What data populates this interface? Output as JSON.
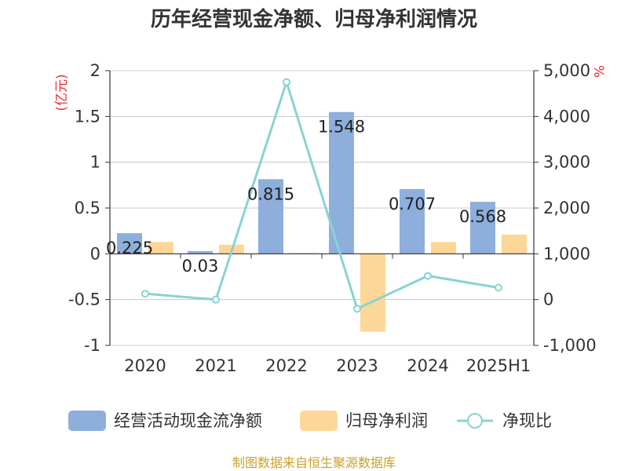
{
  "chart_data": {
    "type": "bar+line",
    "title": "历年经营现金净额、归母净利润情况",
    "categories": [
      "2020",
      "2021",
      "2022",
      "2023",
      "2024",
      "2025H1"
    ],
    "y_left": {
      "unit": "(亿元)",
      "min": -1,
      "max": 2,
      "ticks": [
        2,
        1.5,
        1,
        0.5,
        0,
        -0.5,
        -1
      ],
      "tick_labels": [
        "2",
        "1.5",
        "1",
        "0.5",
        "0",
        "-0.5",
        "-1"
      ]
    },
    "y_right": {
      "unit": "%",
      "min": -1000,
      "max": 5000,
      "ticks": [
        5000,
        4000,
        3000,
        2000,
        1000,
        0,
        -1000
      ],
      "tick_labels": [
        "5,000",
        "4,000",
        "3,000",
        "2,000",
        "1,000",
        "0",
        "-1,000"
      ]
    },
    "series": [
      {
        "name": "经营活动现金流净额",
        "type": "bar",
        "axis": "left",
        "color": "#8eaedc",
        "values": [
          0.225,
          0.03,
          0.815,
          1.548,
          0.707,
          0.568
        ],
        "labels": [
          "0.225",
          "0.03",
          "0.815",
          "1.548",
          "0.707",
          "0.568"
        ]
      },
      {
        "name": "归母净利润",
        "type": "bar",
        "axis": "left",
        "color": "#fdd797",
        "values": [
          0.13,
          0.1,
          0.01,
          -0.85,
          0.13,
          0.21
        ]
      },
      {
        "name": "净现比",
        "type": "line",
        "axis": "right",
        "color": "#88d3d4",
        "values": [
          130,
          0,
          4750,
          -200,
          520,
          260
        ]
      }
    ],
    "grid": true,
    "legend": "bottom"
  },
  "source": "制图数据来自恒生聚源数据库"
}
